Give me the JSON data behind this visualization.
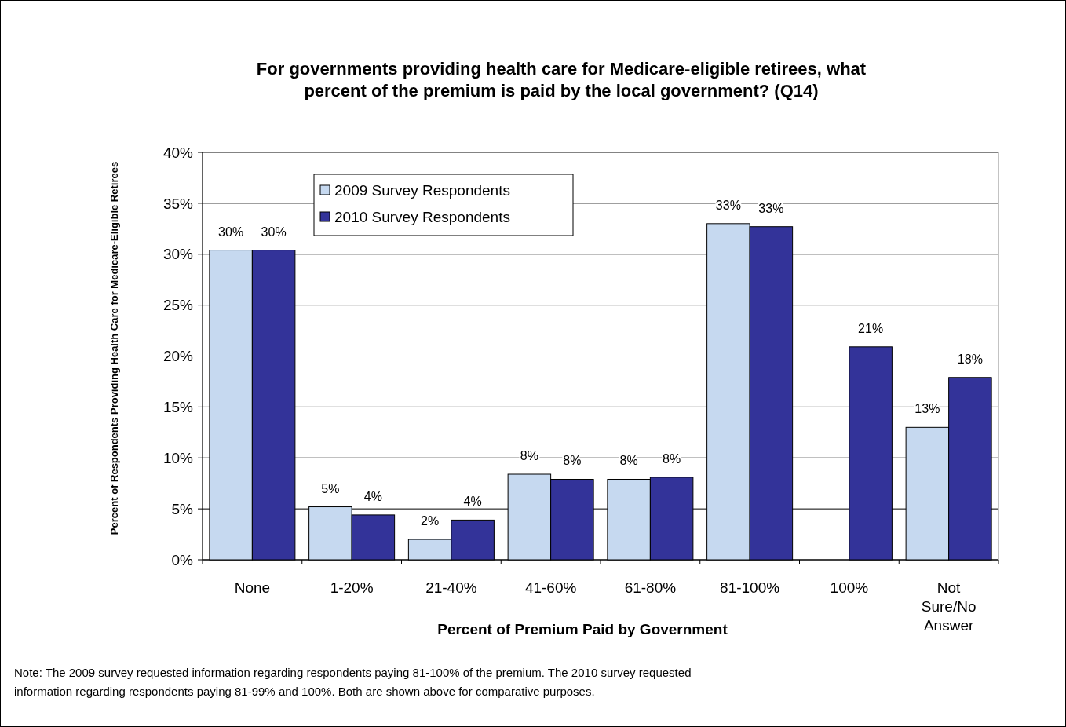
{
  "chart_data": {
    "type": "bar",
    "title": "For governments providing health care for Medicare-eligible retirees, what\npercent of the premium is paid by the local government? (Q14)",
    "xlabel": "Percent of Premium Paid by Government",
    "ylabel": "Percent of Respondents  Providing  Health Care for Medicare-Eligible  Retirees",
    "categories": [
      "None",
      "1-20%",
      "21-40%",
      "41-60%",
      "61-80%",
      "81-100%",
      "100%",
      "Not Sure/No Answer"
    ],
    "series": [
      {
        "name": "2009 Survey Respondents",
        "color": "#c6d9f0",
        "values": [
          30.4,
          5.2,
          2.0,
          8.4,
          7.9,
          33.0,
          null,
          13.0
        ],
        "value_labels": [
          "30%",
          "5%",
          "2%",
          "8%",
          "8%",
          "33%",
          null,
          "13%"
        ]
      },
      {
        "name": "2010 Survey Respondents",
        "color": "#333399",
        "values": [
          30.4,
          4.4,
          3.9,
          7.9,
          8.1,
          32.7,
          20.9,
          17.9
        ],
        "value_labels": [
          "30%",
          "4%",
          "4%",
          "8%",
          "8%",
          "33%",
          "21%",
          "18%"
        ]
      }
    ],
    "ylim": [
      0,
      40
    ],
    "yticks": [
      {
        "value": 0,
        "label": "0%"
      },
      {
        "value": 5,
        "label": "5%"
      },
      {
        "value": 10,
        "label": "10%"
      },
      {
        "value": 15,
        "label": "15%"
      },
      {
        "value": 20,
        "label": "20%"
      },
      {
        "value": 25,
        "label": "25%"
      },
      {
        "value": 30,
        "label": "30%"
      },
      {
        "value": 35,
        "label": "35%"
      },
      {
        "value": 40,
        "label": "40%"
      }
    ],
    "grid": "y",
    "legend": "top left",
    "annotations": [
      "Note: The 2009 survey requested information regarding  respondents paying 81-100% of the premium.  The 2010 survey requested\ninformation regarding respondents paying  81-99% and 100%.  Both are shown above for comparative purposes."
    ]
  }
}
